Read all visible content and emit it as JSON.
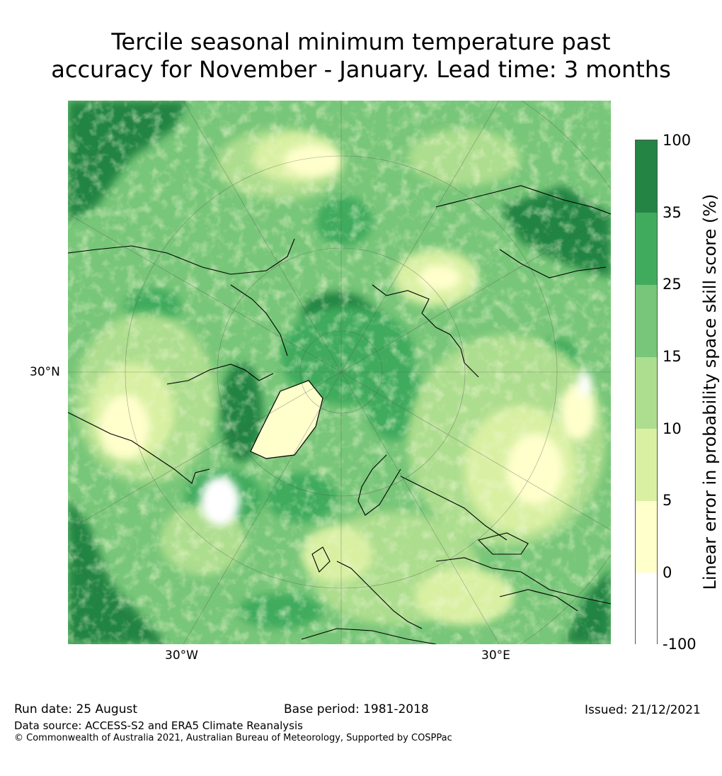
{
  "title": {
    "line1": "Tercile seasonal minimum temperature past",
    "line2": "accuracy for November - January. Lead time: 3 months"
  },
  "map": {
    "projection": "north-polar-stereographic",
    "lat_label": "30°N",
    "lon_labels": [
      "30°W",
      "30°E"
    ]
  },
  "colorbar": {
    "title": "Linear error in probability space skill score (%)",
    "ticks": [
      "100",
      "35",
      "25",
      "15",
      "10",
      "5",
      "0",
      "-100"
    ],
    "bins": [
      {
        "from": "-100",
        "to": "0",
        "color": "#ffffff"
      },
      {
        "from": "0",
        "to": "5",
        "color": "#ffffcc"
      },
      {
        "from": "5",
        "to": "10",
        "color": "#d9f0a3"
      },
      {
        "from": "10",
        "to": "15",
        "color": "#addd8e"
      },
      {
        "from": "15",
        "to": "25",
        "color": "#78c679"
      },
      {
        "from": "25",
        "to": "35",
        "color": "#41ab5d"
      },
      {
        "from": "35",
        "to": "100",
        "color": "#238443"
      }
    ]
  },
  "footer": {
    "run_date": "Run date: 25 August",
    "base_period": "Base period: 1981-2018",
    "issued": "Issued: 21/12/2021",
    "data_source": "Data source: ACCESS-S2 and ERA5 Climate Reanalysis",
    "copyright": "© Commonwealth of Australia 2021, Australian Bureau of Meteorology, Supported by COSPPac"
  }
}
